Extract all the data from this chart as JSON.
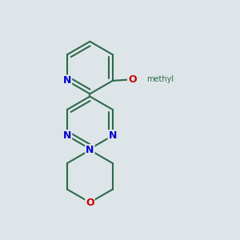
{
  "background_color": "#dde5e8",
  "bond_color": "#2d6b4a",
  "atom_colors": {
    "N": "#0000cc",
    "O": "#cc0000",
    "C": "#2d6b4a"
  },
  "bond_width": 1.5,
  "font_size_atom": 9,
  "xlim": [
    0.05,
    0.95
  ],
  "ylim": [
    0.05,
    0.95
  ]
}
